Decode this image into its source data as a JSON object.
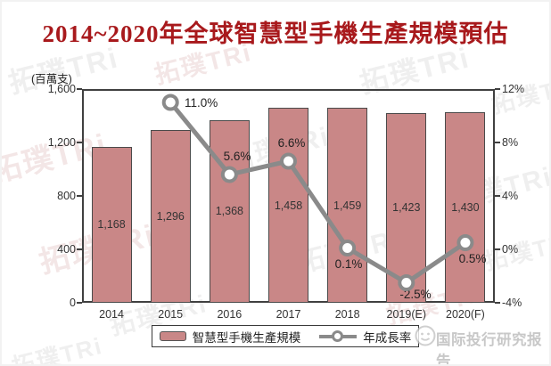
{
  "chart_data": {
    "type": "bar",
    "title": "2014~2020年全球智慧型手機生產規模預估",
    "unit_label": "(百萬支)",
    "categories": [
      "2014",
      "2015",
      "2016",
      "2017",
      "2018",
      "2019(E)",
      "2020(F)"
    ],
    "series": [
      {
        "name": "智慧型手機生產規模",
        "type": "bar",
        "axis": "left",
        "values": [
          1168,
          1296,
          1368,
          1458,
          1459,
          1423,
          1430
        ],
        "labels": [
          "1,168",
          "1,296",
          "1,368",
          "1,458",
          "1,459",
          "1,423",
          "1,430"
        ]
      },
      {
        "name": "年成長率",
        "type": "line",
        "axis": "right",
        "marker": "white-circle",
        "values": [
          null,
          11.0,
          5.6,
          6.6,
          0.1,
          -2.5,
          0.5
        ],
        "labels": [
          null,
          "11.0%",
          "5.6%",
          "6.6%",
          "0.1%",
          "-2.5%",
          "0.5%"
        ]
      }
    ],
    "left_axis": {
      "min": 0,
      "max": 1600,
      "tick_labels": [
        "1,600",
        "1,200",
        "800",
        "400",
        "0"
      ]
    },
    "right_axis": {
      "min": -4,
      "max": 12,
      "tick_labels": [
        "12%",
        "8%",
        "4%",
        "0%",
        "-4%"
      ]
    },
    "grid": false,
    "legend_position": "bottom"
  },
  "colors": {
    "title": "#a8191c",
    "bar_fill": "#c98787",
    "bar_border": "#4a4a4a",
    "line": "#8a8a8a",
    "axis": "#404040",
    "label_text": "#333333",
    "watermark_gray": "#c8c8c8",
    "watermark_pink": "#d9b0b0"
  },
  "watermark": {
    "text": "拓璞TRi"
  },
  "footer": {
    "text": "国际投行研究报告"
  }
}
